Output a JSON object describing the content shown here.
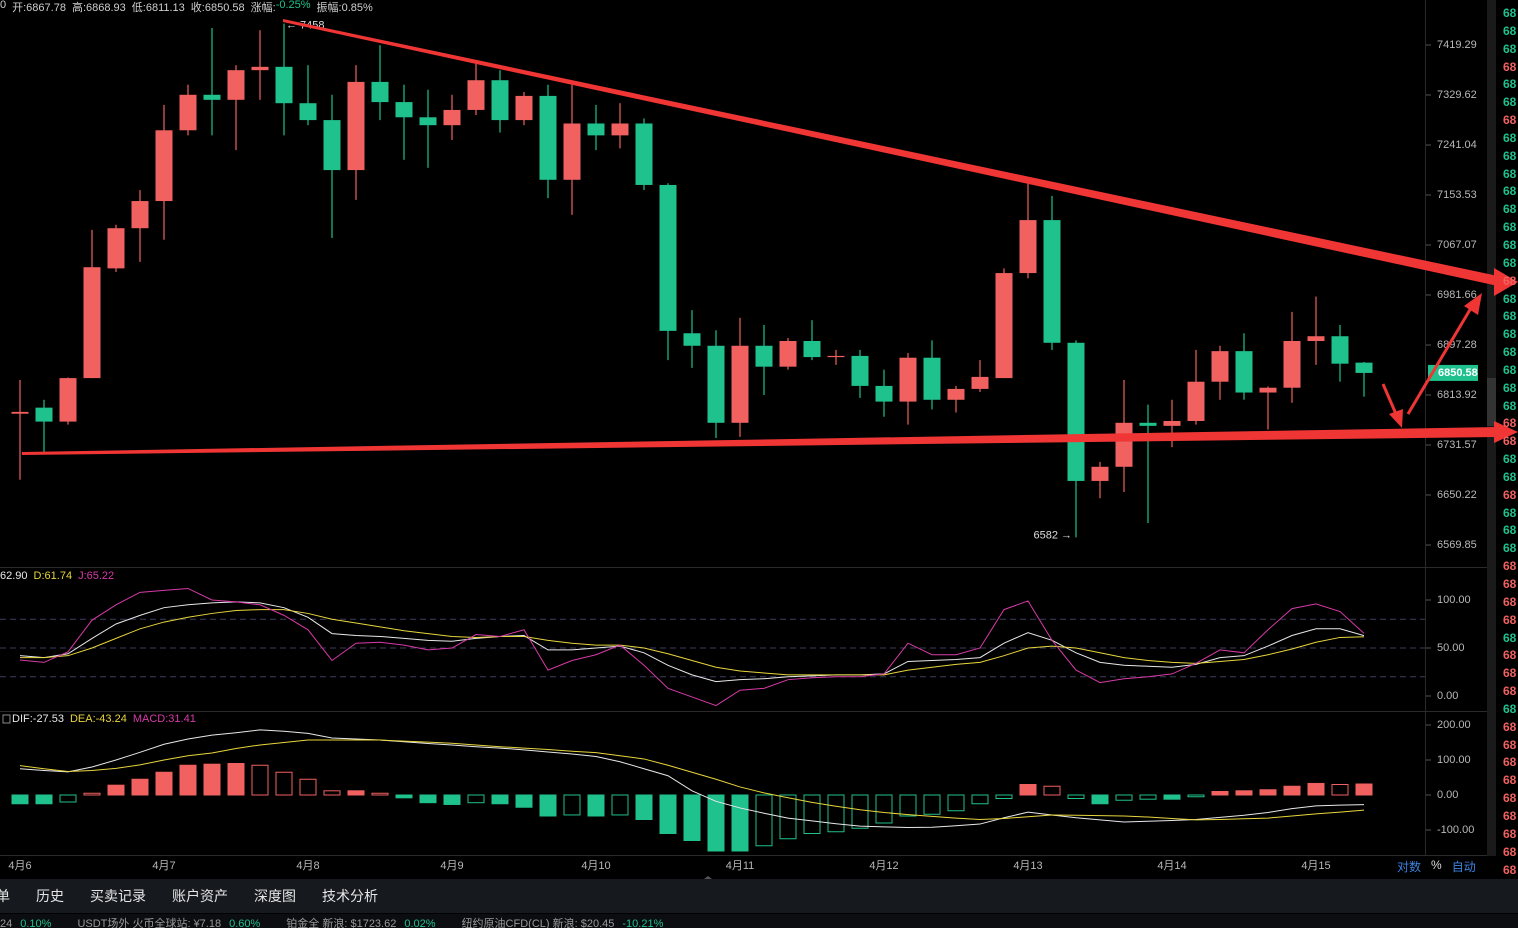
{
  "chart_data": [
    {
      "type": "candlestick",
      "header": [
        "0",
        "开:6867.78",
        "高:6868.93",
        "低:6811.13",
        "收:6850.58",
        "涨幅:",
        "-0.25%",
        "振幅:0.85%"
      ],
      "categories": [
        "4月6",
        null,
        null,
        null,
        null,
        null,
        "4月7",
        null,
        null,
        null,
        null,
        null,
        "4月8",
        null,
        null,
        null,
        null,
        null,
        "4月9",
        null,
        null,
        null,
        null,
        null,
        "4月10",
        null,
        null,
        null,
        null,
        null,
        "4月11",
        null,
        null,
        null,
        null,
        null,
        "4月12",
        null,
        null,
        null,
        null,
        null,
        "4月13",
        null,
        null,
        null,
        null,
        null,
        "4月14",
        null,
        null,
        null,
        null,
        null,
        "4月15",
        null,
        null
      ],
      "open": [
        6783,
        6793,
        6770,
        6842,
        7027,
        7096,
        7143,
        7267,
        7330,
        7321,
        7374,
        7380,
        7315,
        7285,
        7197,
        7353,
        7317,
        7290,
        7276,
        7303,
        7356,
        7285,
        7328,
        7180,
        7279,
        7258,
        7279,
        7171,
        6917,
        6896,
        6768,
        6896,
        6861,
        6904,
        6877,
        6879,
        6829,
        6803,
        6876,
        6806,
        6824,
        6842,
        7019,
        7110,
        6901,
        6673,
        6696,
        6768,
        6763,
        6771,
        6836,
        6887,
        6818,
        6826,
        6904,
        6912,
        6867.78
      ],
      "high": [
        6839,
        6806,
        6843,
        7093,
        7102,
        7162,
        7312,
        7348,
        7450,
        7383,
        7446,
        7458,
        7383,
        7330,
        7383,
        7419,
        7348,
        7339,
        7330,
        7389,
        7374,
        7335,
        7348,
        7348,
        7312,
        7315,
        7288,
        7174,
        6956,
        6922,
        6943,
        6931,
        6909,
        6939,
        6889,
        6889,
        6856,
        6884,
        6905,
        6829,
        6872,
        7027,
        7174,
        7152,
        6905,
        6704,
        6839,
        6798,
        6806,
        6889,
        6896,
        6917,
        6828,
        6953,
        6979,
        6931,
        6868.93
      ],
      "low": [
        6675,
        6720,
        6765,
        6842,
        7021,
        7038,
        7076,
        7258,
        7258,
        7232,
        7321,
        7258,
        7276,
        7079,
        7145,
        7285,
        7215,
        7201,
        7250,
        7294,
        7263,
        7276,
        7148,
        7119,
        7232,
        7235,
        7162,
        6872,
        6859,
        6743,
        6745,
        6814,
        6856,
        6872,
        6864,
        6809,
        6778,
        6765,
        6790,
        6785,
        6819,
        6842,
        7010,
        6889,
        6582,
        6645,
        6655,
        6605,
        6728,
        6765,
        6806,
        6806,
        6757,
        6801,
        6864,
        6836,
        6811.13
      ],
      "close": [
        6786,
        6770,
        6842,
        7029,
        7096,
        7143,
        7267,
        7330,
        7321,
        7374,
        7380,
        7315,
        7285,
        7197,
        7353,
        7317,
        7290,
        7276,
        7303,
        7356,
        7285,
        7328,
        7180,
        7279,
        7258,
        7279,
        7171,
        6921,
        6896,
        6768,
        6896,
        6861,
        6904,
        6877,
        6879,
        6829,
        6803,
        6876,
        6806,
        6824,
        6844,
        7019,
        7110,
        6901,
        6673,
        6696,
        6768,
        6763,
        6771,
        6836,
        6887,
        6818,
        6826,
        6904,
        6912,
        6866,
        6850.58
      ],
      "up_color": "#f0615f",
      "down_color": "#1fc18c",
      "log": true,
      "ylim": [
        6534.8,
        7500.9
      ],
      "yticks": [
        7419.29,
        7329.62,
        7241.04,
        7153.53,
        7067.07,
        6981.66,
        6897.28,
        6813.92,
        6731.57,
        6650.22,
        6569.85
      ],
      "annotations": [
        {
          "label": "← 7458",
          "value": 7458
        },
        {
          "label": "6582 →",
          "value": 6582
        }
      ]
    },
    {
      "type": "line",
      "series": [
        {
          "name": "62.90",
          "color": "#e8e8e8",
          "values": [
            42,
            40,
            44,
            60,
            75,
            84,
            92,
            95,
            97,
            98,
            97,
            92,
            82,
            65,
            63,
            62,
            60,
            58,
            57,
            60,
            62,
            63,
            48,
            48,
            50,
            52,
            45,
            32,
            22,
            15,
            17,
            18,
            20,
            21,
            22,
            22,
            23,
            36,
            37,
            38,
            40,
            55,
            66,
            58,
            45,
            35,
            32,
            31,
            30,
            33,
            40,
            42,
            52,
            63,
            70,
            70,
            62.9
          ]
        },
        {
          "name": "D:61.74",
          "color": "#e8d53c",
          "values": [
            40,
            40,
            42,
            50,
            60,
            70,
            77,
            82,
            86,
            89,
            90,
            90,
            86,
            80,
            76,
            72,
            68,
            65,
            62,
            61,
            62,
            62,
            58,
            55,
            53,
            53,
            50,
            44,
            37,
            30,
            26,
            24,
            22,
            22,
            22,
            22,
            22,
            27,
            30,
            33,
            35,
            42,
            50,
            52,
            50,
            45,
            40,
            37,
            35,
            34,
            36,
            38,
            43,
            49,
            56,
            61,
            61.74
          ]
        },
        {
          "name": "J:65.22",
          "color": "#d83aa8",
          "values": [
            37.5,
            35,
            46,
            79,
            95,
            108,
            110,
            112,
            100,
            98,
            95,
            84,
            69,
            37,
            55,
            56,
            53,
            48,
            50,
            64,
            62,
            69,
            27,
            37,
            43,
            53,
            32,
            8,
            -1,
            -10,
            6,
            8,
            17,
            19,
            20,
            20,
            23,
            55,
            43,
            43,
            50,
            90,
            99,
            58,
            27,
            14,
            18,
            20,
            23,
            34,
            48,
            45,
            69,
            91,
            96,
            88,
            65.22
          ]
        }
      ],
      "ylim": [
        -14.58,
        133.33
      ],
      "yticks": [
        {
          "value": 100,
          "label": "100.00"
        },
        {
          "value": 50,
          "label": "50.00"
        },
        {
          "value": 0,
          "label": "0.00"
        }
      ],
      "levels": [
        80,
        50,
        20
      ]
    },
    {
      "type": "macd",
      "series": [
        {
          "name": "DIF:-27.53",
          "color": "#e8e8e8",
          "values": [
            75,
            70,
            66,
            80,
            100,
            122,
            145,
            160,
            171,
            178,
            186,
            182,
            176,
            163,
            160,
            157,
            152,
            147,
            143,
            138,
            134,
            129,
            123,
            117,
            110,
            95,
            75,
            55,
            12,
            -18,
            -37,
            -52,
            -66,
            -74,
            -82,
            -89,
            -91,
            -93,
            -92,
            -88,
            -83,
            -65,
            -49,
            -57,
            -65,
            -71,
            -77,
            -75,
            -73,
            -70,
            -64,
            -58,
            -50,
            -39,
            -31,
            -29,
            -27.53
          ]
        },
        {
          "name": "DEA:-43.24",
          "color": "#e8d53c",
          "values": [
            84,
            75,
            67,
            70,
            76,
            86,
            100,
            112,
            120,
            133,
            143,
            150,
            157,
            157,
            157,
            157,
            154,
            151,
            148,
            143,
            138,
            134,
            130,
            125,
            121,
            112,
            103,
            85,
            65,
            45,
            23,
            6,
            -8,
            -21,
            -32,
            -42,
            -50,
            -56,
            -61,
            -66,
            -70,
            -67,
            -62,
            -57,
            -58,
            -59,
            -60,
            -63,
            -67,
            -71,
            -70,
            -68,
            -66,
            -60,
            -54,
            -49,
            -43.24
          ]
        }
      ],
      "histogram": {
        "name": "MACD:31.41",
        "up_color": "#f0615f",
        "down_color": "#1fc18c",
        "values": [
          -25,
          -25,
          -20,
          5,
          28,
          45,
          65,
          85,
          88,
          90,
          85,
          65,
          45,
          12,
          12,
          5,
          -8,
          -22,
          -27,
          -22,
          -25,
          -35,
          -60,
          -57,
          -60,
          -57,
          -70,
          -110,
          -130,
          -160,
          -160,
          -145,
          -125,
          -110,
          -105,
          -95,
          -80,
          -60,
          -55,
          -45,
          -25,
          -10,
          30,
          25,
          -10,
          -25,
          -15,
          -12,
          -12,
          -5,
          10,
          12,
          15,
          25,
          33,
          30,
          31.41
        ]
      },
      "ylim": [
        -171.43,
        237.14
      ],
      "yticks": [
        {
          "value": 200,
          "label": "200.00"
        },
        {
          "value": 100,
          "label": "100.00"
        },
        {
          "value": 0,
          "label": "0.00"
        },
        {
          "value": -100,
          "label": "-100.00"
        }
      ]
    }
  ],
  "axis_buttons": [
    "对数",
    "%",
    "自动"
  ],
  "tabs": [
    "单",
    "历史",
    "买卖记录",
    "账户资产",
    "深度图",
    "技术分析"
  ],
  "ticker": [
    "24",
    "0.10%",
    "USDT场外 火币全球站: ¥7.18",
    "0.60%",
    "铂金全 新浪: $1723.62",
    "0.02%",
    "纽约原油CFD(CL) 新浪: $20.45",
    "-10.21%"
  ],
  "edge_labels": [
    {
      "label": "68",
      "color": "#1fc18c"
    },
    {
      "label": "68",
      "color": "#1fc18c"
    },
    {
      "label": "68",
      "color": "#1fc18c"
    },
    {
      "label": "68",
      "color": "#f0615f"
    },
    {
      "label": "68",
      "color": "#1fc18c"
    },
    {
      "label": "68",
      "color": "#1fc18c"
    },
    {
      "label": "68",
      "color": "#f0615f"
    },
    {
      "label": "68",
      "color": "#1fc18c"
    },
    {
      "label": "68",
      "color": "#1fc18c"
    },
    {
      "label": "68",
      "color": "#1fc18c"
    },
    {
      "label": "68",
      "color": "#1fc18c"
    },
    {
      "label": "68",
      "color": "#1fc18c"
    },
    {
      "label": "68",
      "color": "#1fc18c"
    },
    {
      "label": "68",
      "color": "#1fc18c"
    },
    {
      "label": "68",
      "color": "#1fc18c"
    },
    {
      "label": "68",
      "color": "#f0615f"
    },
    {
      "label": "68",
      "color": "#1fc18c"
    },
    {
      "label": "68",
      "color": "#1fc18c"
    },
    {
      "label": "68",
      "color": "#1fc18c"
    },
    {
      "label": "68",
      "color": "#1fc18c"
    },
    {
      "label": "68",
      "color": "#1fc18c"
    },
    {
      "label": "68",
      "color": "#1fc18c"
    },
    {
      "label": "68",
      "color": "#1fc18c"
    },
    {
      "label": "68",
      "color": "#f0615f"
    },
    {
      "label": "68",
      "color": "#f0615f"
    },
    {
      "label": "68",
      "color": "#1fc18c"
    },
    {
      "label": "68",
      "color": "#1fc18c"
    },
    {
      "label": "68",
      "color": "#f0615f"
    },
    {
      "label": "68",
      "color": "#1fc18c"
    },
    {
      "label": "68",
      "color": "#1fc18c"
    },
    {
      "label": "68",
      "color": "#1fc18c"
    },
    {
      "label": "68",
      "color": "#f0615f"
    },
    {
      "label": "68",
      "color": "#f0615f"
    },
    {
      "label": "68",
      "color": "#f0615f"
    },
    {
      "label": "68",
      "color": "#f0615f"
    },
    {
      "label": "68",
      "color": "#1fc18c"
    },
    {
      "label": "68",
      "color": "#f0615f"
    },
    {
      "label": "68",
      "color": "#f0615f"
    },
    {
      "label": "68",
      "color": "#f0615f"
    },
    {
      "label": "68",
      "color": "#1fc18c"
    },
    {
      "label": "68",
      "color": "#f0615f"
    },
    {
      "label": "68",
      "color": "#f0615f"
    },
    {
      "label": "68",
      "color": "#f0615f"
    },
    {
      "label": "68",
      "color": "#f0615f"
    },
    {
      "label": "68",
      "color": "#f0615f"
    },
    {
      "label": "68",
      "color": "#f0615f"
    },
    {
      "label": "68",
      "color": "#f0615f"
    },
    {
      "label": "68",
      "color": "#f0615f"
    },
    {
      "label": "68",
      "color": "#f0615f"
    },
    {
      "label": "68",
      "color": "#f0615f"
    },
    {
      "label": "68",
      "color": "#f0615f"
    }
  ]
}
